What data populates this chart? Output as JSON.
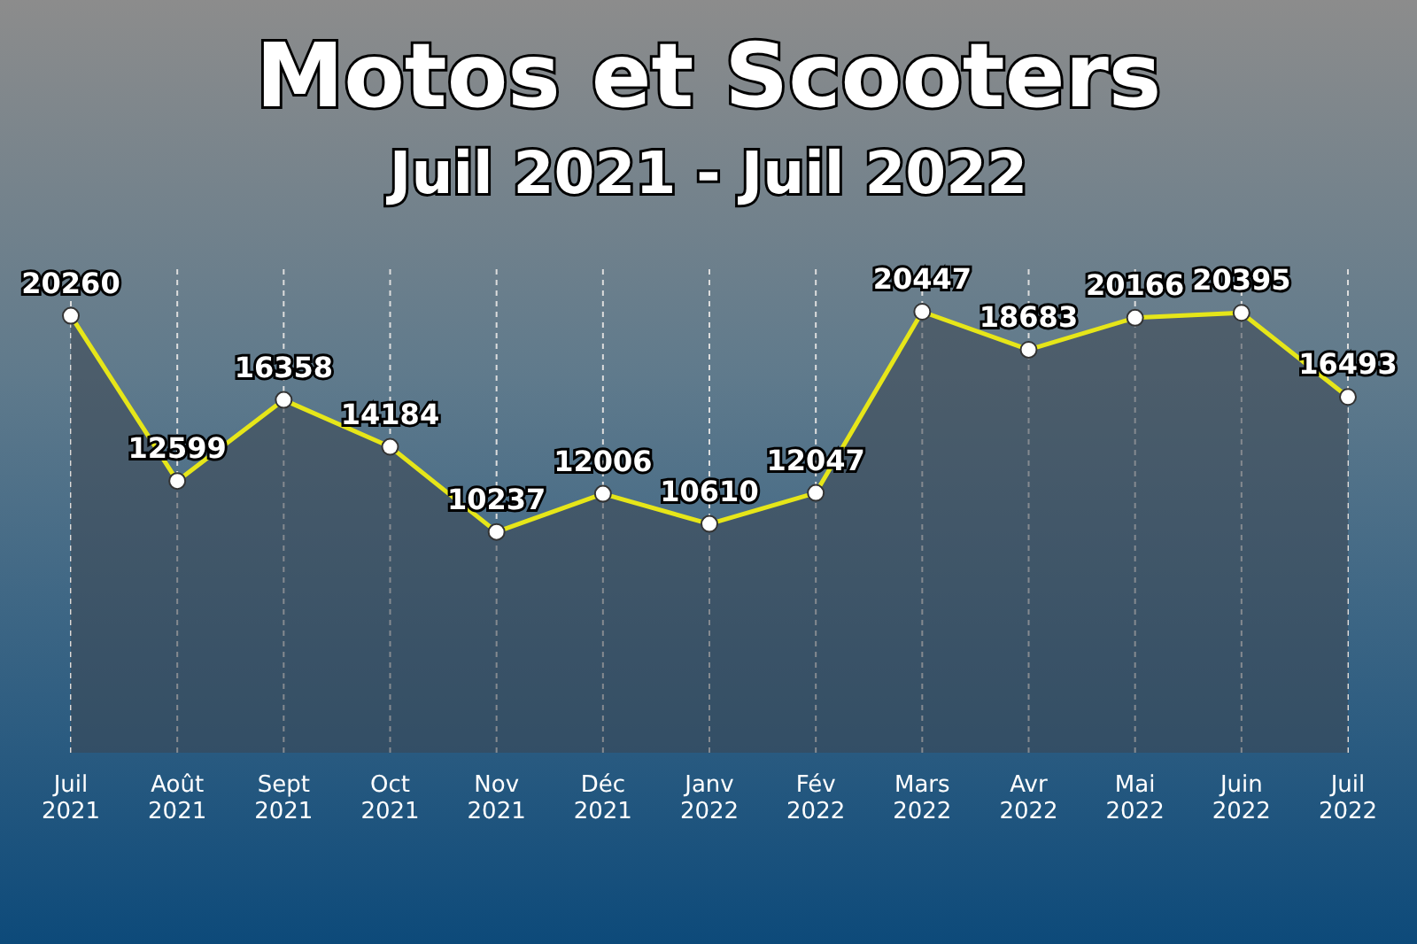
{
  "chart_data": {
    "type": "area",
    "title": "Motos et Scooters",
    "subtitle": "Juil 2021 - Juil 2022",
    "categories": [
      "Juil 2021",
      "Août 2021",
      "Sept 2021",
      "Oct 2021",
      "Nov 2021",
      "Déc 2021",
      "Janv 2022",
      "Fév 2022",
      "Mars 2022",
      "Avr 2022",
      "Mai 2022",
      "Juin 2022",
      "Juil 2022"
    ],
    "series": [
      {
        "color": "#e6e619",
        "values": [
          20260,
          12599,
          16358,
          14184,
          10237,
          12006,
          10610,
          12047,
          20447,
          18683,
          20166,
          20395,
          16493
        ]
      }
    ],
    "data_labels": true,
    "grid": "x",
    "marker": "circle"
  }
}
